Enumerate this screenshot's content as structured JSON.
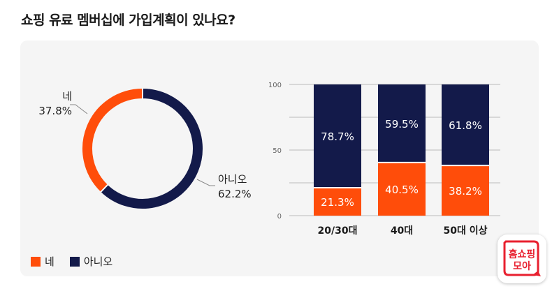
{
  "page": {
    "title": "쇼핑 유료 멤버십에 가입계획이 있나요?"
  },
  "colors": {
    "yes": "#ff4d0a",
    "no": "#131a4a",
    "grid": "#bbbbbb"
  },
  "chart_data": [
    {
      "type": "pie",
      "subtype": "donut",
      "slices": [
        {
          "label": "네",
          "value": 37.8,
          "value_label": "37.8%"
        },
        {
          "label": "아니오",
          "value": 62.2,
          "value_label": "62.2%"
        }
      ],
      "legend": {
        "position": "bottom-left",
        "entries": [
          "네",
          "아니오"
        ]
      }
    },
    {
      "type": "bar",
      "subtype": "stacked",
      "categories": [
        "20/30대",
        "40대",
        "50대 이상"
      ],
      "series": [
        {
          "name": "네",
          "values": [
            21.3,
            40.5,
            38.2
          ],
          "value_labels": [
            "21.3%",
            "40.5%",
            "38.2%"
          ]
        },
        {
          "name": "아니오",
          "values": [
            78.7,
            59.5,
            61.8
          ],
          "value_labels": [
            "78.7%",
            "59.5%",
            "61.8%"
          ]
        }
      ],
      "ylim": [
        0,
        100
      ],
      "yticks": [
        "0",
        "50",
        "100"
      ],
      "grid": true
    }
  ],
  "logo": {
    "line1": "홈쇼핑",
    "line2": "모아"
  }
}
